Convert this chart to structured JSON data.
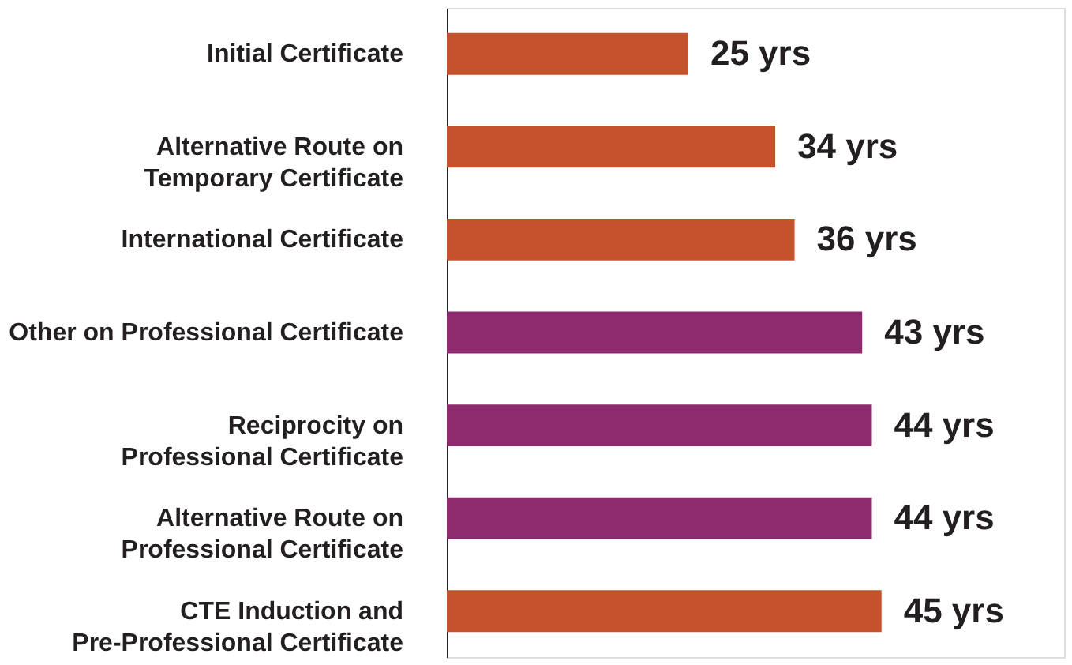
{
  "chart_data": {
    "type": "bar",
    "orientation": "horizontal",
    "categories": [
      "Initial Certificate",
      "Alternative Route on\nTemporary Certificate",
      "International Certificate",
      "Other on Professional Certificate",
      "Reciprocity on\nProfessional Certificate",
      "Alternative Route on\nProfessional Certificate",
      "CTE Induction and\nPre-Professional Certificate"
    ],
    "values": [
      25,
      34,
      36,
      43,
      44,
      44,
      45
    ],
    "colors": [
      "#c4522a",
      "#c4522a",
      "#c4522a",
      "#8e2a6e",
      "#8e2a6e",
      "#8e2a6e",
      "#c4522a"
    ],
    "value_labels": [
      "25 yrs",
      "34 yrs",
      "36 yrs",
      "43 yrs",
      "44 yrs",
      "44 yrs",
      "45 yrs"
    ],
    "grid": false
  }
}
